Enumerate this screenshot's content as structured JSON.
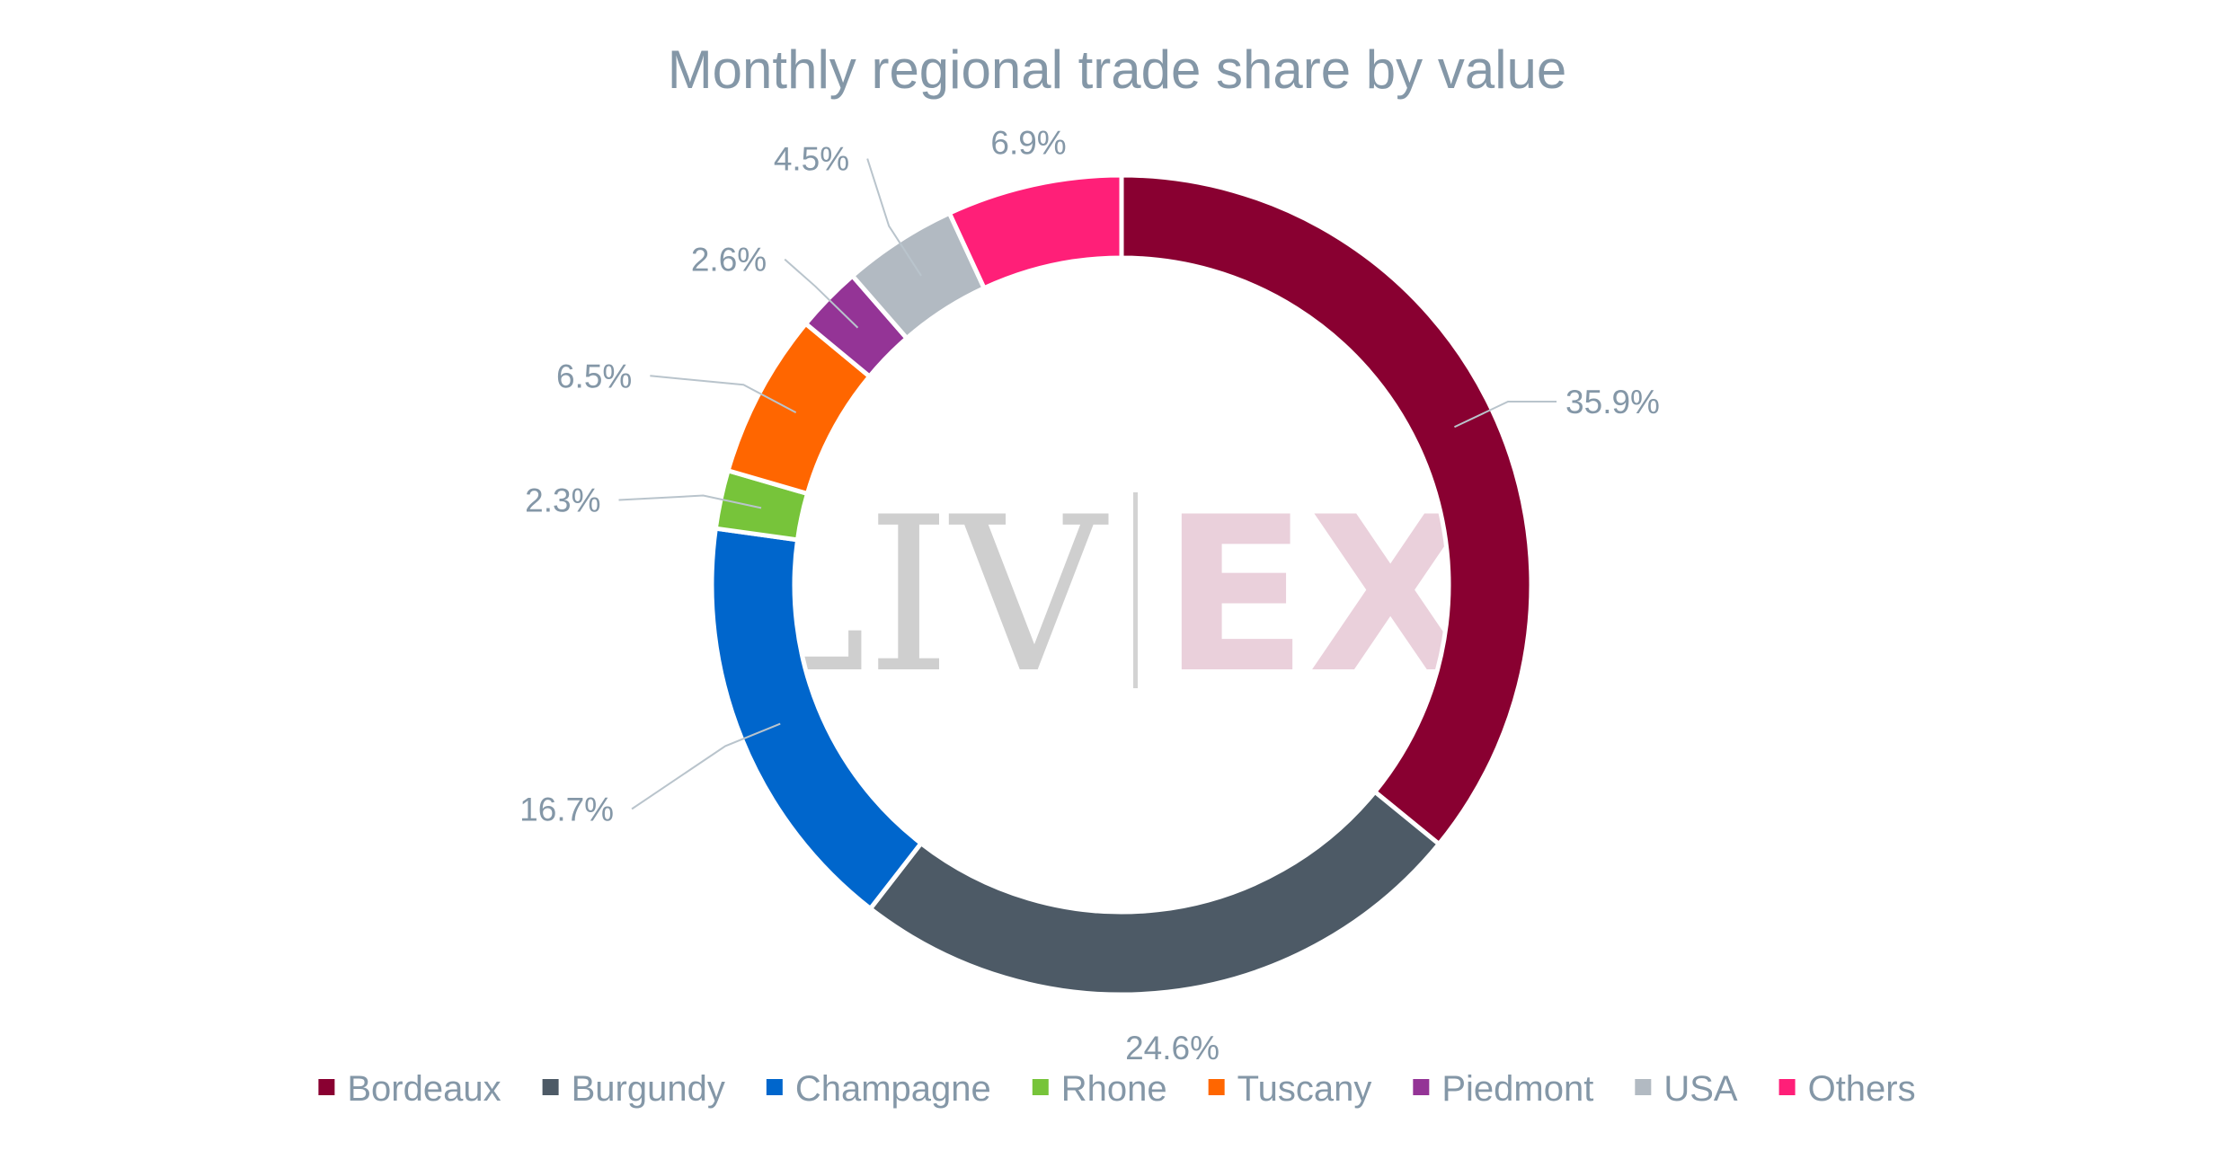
{
  "chart_data": {
    "type": "pie",
    "title": "Monthly regional trade share by value",
    "legend_position": "bottom",
    "series": [
      {
        "name": "Bordeaux",
        "value": 35.9,
        "label": "35.9%",
        "color": "#890031"
      },
      {
        "name": "Burgundy",
        "value": 24.6,
        "label": "24.6%",
        "color": "#4d5a66"
      },
      {
        "name": "Champagne",
        "value": 16.7,
        "label": "16.7%",
        "color": "#0066cc"
      },
      {
        "name": "Rhone",
        "value": 2.3,
        "label": "2.3%",
        "color": "#77c43a"
      },
      {
        "name": "Tuscany",
        "value": 6.5,
        "label": "6.5%",
        "color": "#ff6600"
      },
      {
        "name": "Piedmont",
        "value": 2.6,
        "label": "2.6%",
        "color": "#943496"
      },
      {
        "name": "USA",
        "value": 4.5,
        "label": "4.5%",
        "color": "#b2bac2"
      },
      {
        "name": "Others",
        "value": 6.9,
        "label": "6.9%",
        "color": "#ff1f78"
      }
    ]
  },
  "watermark": {
    "left": "LIV",
    "right": "EX"
  }
}
